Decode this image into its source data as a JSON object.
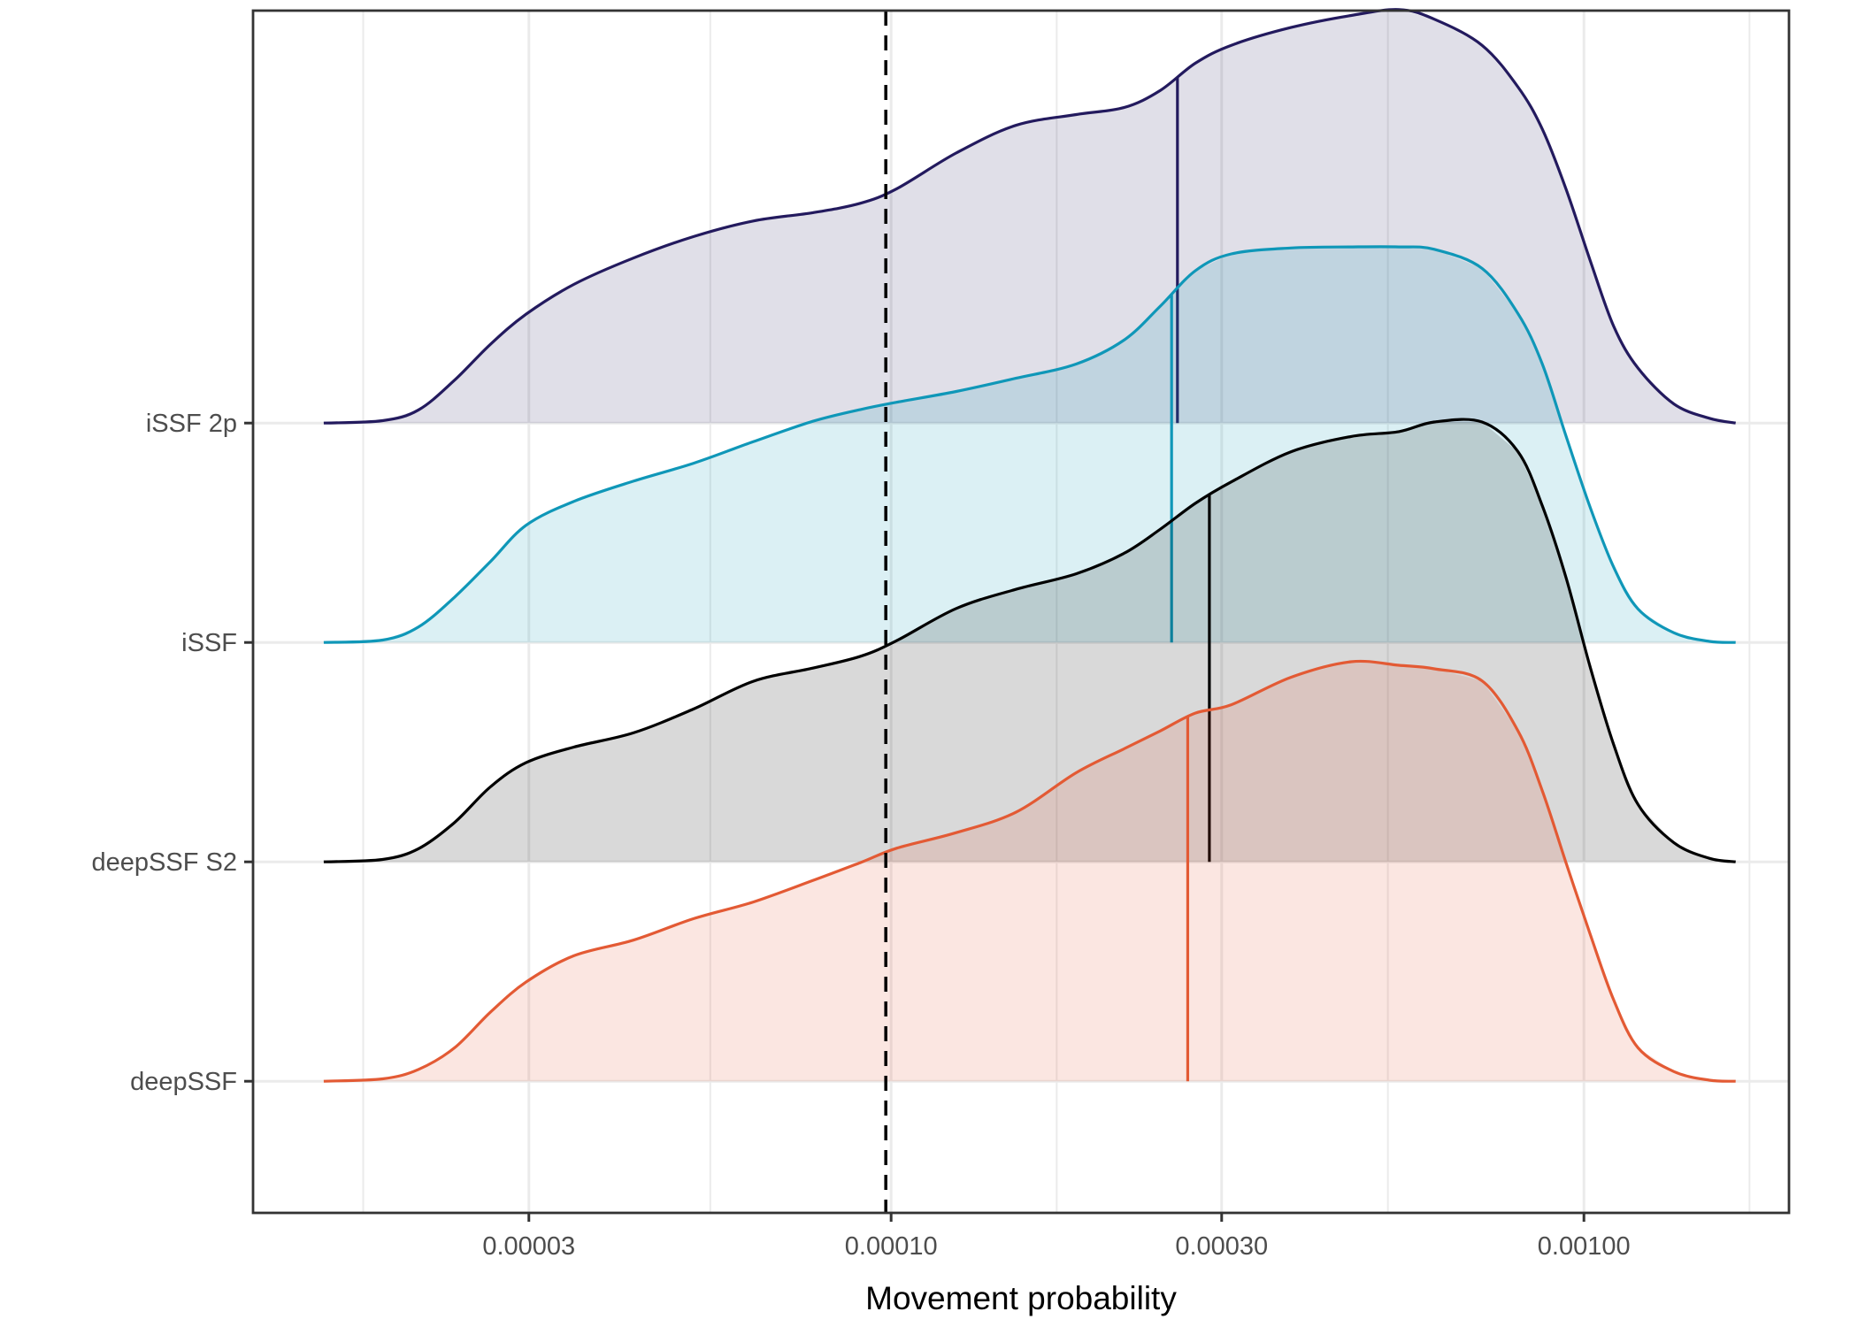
{
  "chart_data": {
    "type": "ridgeline-density",
    "title": "",
    "xlabel": "Movement probability",
    "ylabel": "",
    "x_scale": "log10",
    "x_range_log10": [
      -4.921,
      -2.704
    ],
    "y_range": [
      0.4,
      5.88
    ],
    "grid": true,
    "x_ticks": [
      {
        "value": 3e-05,
        "label": "0.00003"
      },
      {
        "value": 0.0001,
        "label": "0.00010"
      },
      {
        "value": 0.0003,
        "label": "0.00030"
      },
      {
        "value": 0.001,
        "label": "0.00100"
      }
    ],
    "x_minor_ticks_log10": [
      -4.762,
      -4.261,
      -3.761,
      -3.283,
      -2.761
    ],
    "reference_line": {
      "value": 0.0001,
      "style": "dashed",
      "color": "#000000"
    },
    "categories": [
      "deepSSF",
      "deepSSF S2",
      "iSSF",
      "iSSF 2p"
    ],
    "x_log10": [
      -4.819,
      -4.734,
      -4.682,
      -4.63,
      -4.578,
      -4.527,
      -4.458,
      -4.372,
      -4.285,
      -4.199,
      -4.113,
      -4.044,
      -3.992,
      -3.906,
      -3.82,
      -3.733,
      -3.664,
      -3.612,
      -3.561,
      -3.509,
      -3.423,
      -3.336,
      -3.267,
      -3.216,
      -3.147,
      -3.095,
      -3.06,
      -3.026,
      -2.991,
      -2.957,
      -2.922,
      -2.87,
      -2.819,
      -2.781
    ],
    "series": [
      {
        "name": "deepSSF",
        "line_color": "#e35a34",
        "fill_color": "#e35a34",
        "fill_opacity": 0.15,
        "median": 0.000268,
        "density": [
          0,
          0.011,
          0.054,
          0.153,
          0.316,
          0.452,
          0.572,
          0.643,
          0.741,
          0.817,
          0.915,
          0.997,
          1.062,
          1.133,
          1.226,
          1.406,
          1.515,
          1.596,
          1.678,
          1.716,
          1.841,
          1.912,
          1.896,
          1.88,
          1.825,
          1.596,
          1.324,
          0.997,
          0.67,
          0.37,
          0.153,
          0.044,
          0.005,
          0
        ]
      },
      {
        "name": "deepSSF S2",
        "line_color": "#000000",
        "fill_color": "#000000",
        "fill_opacity": 0.15,
        "median": 0.000288,
        "density": [
          0,
          0.011,
          0.06,
          0.18,
          0.343,
          0.452,
          0.523,
          0.588,
          0.697,
          0.823,
          0.883,
          0.937,
          1.008,
          1.155,
          1.242,
          1.313,
          1.406,
          1.515,
          1.634,
          1.732,
          1.869,
          1.939,
          1.961,
          2.005,
          2.005,
          1.869,
          1.623,
          1.297,
          0.888,
          0.534,
          0.262,
          0.087,
          0.016,
          0
        ]
      },
      {
        "name": "iSSF",
        "line_color": "#0f97b8",
        "fill_color": "#0f97b8",
        "fill_opacity": 0.15,
        "median": 0.000254,
        "density": [
          0,
          0.011,
          0.071,
          0.207,
          0.37,
          0.534,
          0.643,
          0.735,
          0.817,
          0.915,
          1.008,
          1.062,
          1.095,
          1.144,
          1.204,
          1.269,
          1.378,
          1.531,
          1.694,
          1.771,
          1.798,
          1.803,
          1.803,
          1.792,
          1.705,
          1.498,
          1.269,
          0.942,
          0.616,
          0.343,
          0.153,
          0.044,
          0.005,
          0
        ]
      },
      {
        "name": "iSSF 2p",
        "line_color": "#231a5e",
        "fill_color": "#231a5e",
        "fill_opacity": 0.14,
        "median": 0.000259,
        "density": [
          0,
          0.011,
          0.06,
          0.196,
          0.36,
          0.496,
          0.632,
          0.752,
          0.85,
          0.921,
          0.959,
          1.002,
          1.068,
          1.231,
          1.357,
          1.406,
          1.438,
          1.515,
          1.64,
          1.722,
          1.803,
          1.858,
          1.885,
          1.841,
          1.722,
          1.531,
          1.34,
          1.068,
          0.741,
          0.441,
          0.251,
          0.087,
          0.022,
          0
        ]
      }
    ],
    "colors": {
      "panel_border": "#333333",
      "grid_major": "#ebebeb",
      "grid_minor": "#ebebeb",
      "tick_label": "#4d4d4d",
      "axis_title": "#000000"
    }
  }
}
